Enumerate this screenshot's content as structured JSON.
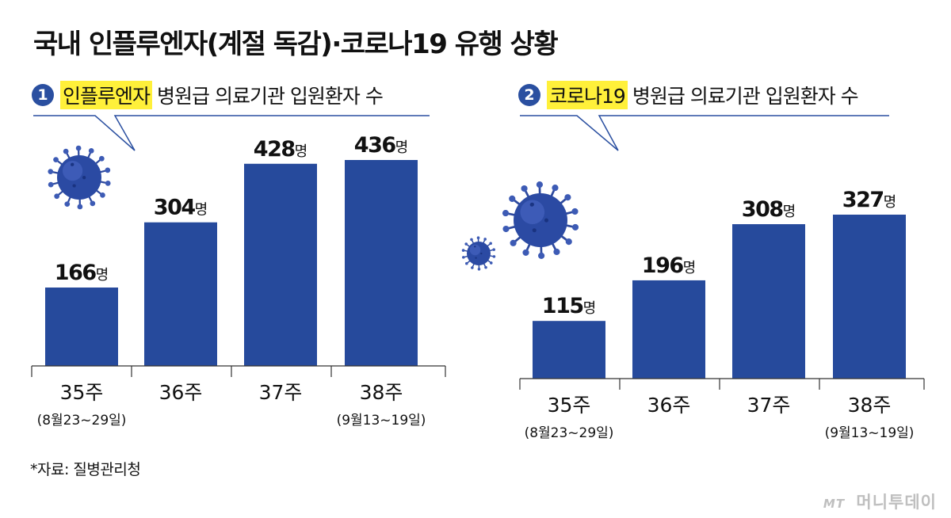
{
  "title": "국내 인플루엔자(계절 독감)·코로나19 유행 상황",
  "panels": [
    {
      "number": "1",
      "highlight": "인플루엔자",
      "heading_rest": "병원급 의료기관 입원환자 수"
    },
    {
      "number": "2",
      "highlight": "코로나19",
      "heading_rest": "병원급 의료기관 입원환자 수"
    }
  ],
  "chart_data": [
    {
      "type": "bar",
      "title": "인플루엔자 병원급 의료기관 입원환자 수",
      "categories": [
        "35주",
        "36주",
        "37주",
        "38주"
      ],
      "category_notes": [
        "(8월23~29일)",
        "",
        "",
        "(9월13~19일)"
      ],
      "values": [
        166,
        304,
        428,
        436
      ],
      "value_suffix": "명",
      "bar_color": "#264a9c",
      "ylim": [
        0,
        436
      ]
    },
    {
      "type": "bar",
      "title": "코로나19 병원급 의료기관 입원환자 수",
      "categories": [
        "35주",
        "36주",
        "37주",
        "38주"
      ],
      "category_notes": [
        "(8월23~29일)",
        "",
        "",
        "(9월13~19일)"
      ],
      "values": [
        115,
        196,
        308,
        327
      ],
      "value_suffix": "명",
      "bar_color": "#264a9c",
      "ylim": [
        0,
        327
      ]
    }
  ],
  "source": "*자료: 질병관리청",
  "watermark": {
    "mt": "MT",
    "brand": "머니투데이"
  },
  "icons": [
    "virus-icon"
  ]
}
